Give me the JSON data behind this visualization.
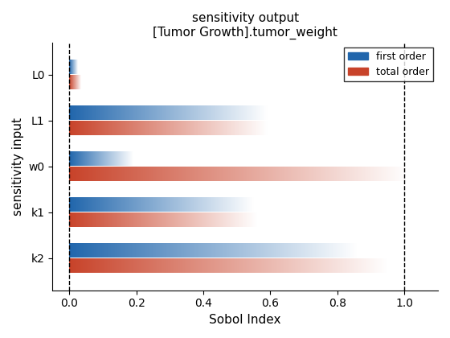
{
  "title": "sensitivity output\n[Tumor Growth].tumor_weight",
  "xlabel": "Sobol Index",
  "ylabel": "sensitivity input",
  "ytick_labels": [
    "L0",
    "L1",
    "w0",
    "k1",
    "k2"
  ],
  "first_order": [
    0.025,
    0.59,
    0.19,
    0.55,
    0.86
  ],
  "total_order": [
    0.035,
    0.59,
    1.01,
    0.56,
    0.95
  ],
  "xlim": [
    -0.05,
    1.1
  ],
  "bar_height": 0.3,
  "bar_gap": 0.04,
  "color_first": "#2166ac",
  "color_total": "#c8432a",
  "vline_positions": [
    0.0,
    1.0
  ],
  "legend_labels": [
    "first order",
    "total order"
  ],
  "xticks": [
    0.0,
    0.2,
    0.4,
    0.6,
    0.8,
    1.0
  ]
}
